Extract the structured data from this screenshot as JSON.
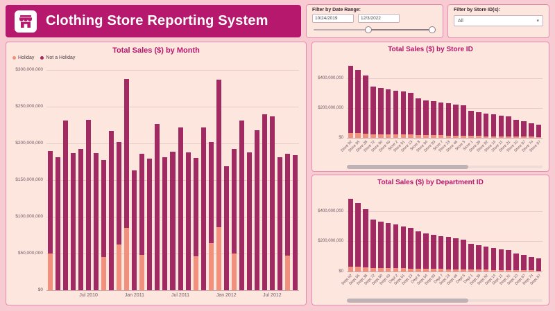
{
  "header": {
    "title": "Clothing Store Reporting System"
  },
  "filters": {
    "date": {
      "label": "Filter by Date Range:",
      "start": "10/24/2019",
      "end": "12/3/2022"
    },
    "store": {
      "label": "Filter by Store ID(s):",
      "value": "All"
    }
  },
  "colors": {
    "accent": "#b5186d",
    "bar_not_holiday": "#a12a63",
    "bar_holiday": "#f2907e",
    "panel_bg": "#fde6de",
    "panel_border": "#e78bb0",
    "page_bg": "#f8cbd3"
  },
  "chart_data": [
    {
      "id": "by_month",
      "type": "bar",
      "stacked": true,
      "title": "Total Sales ($) by Month",
      "unit": "million USD",
      "legend": [
        {
          "name": "Holiday",
          "color": "#f2907e"
        },
        {
          "name": "Not a Holiday",
          "color": "#a12a63"
        }
      ],
      "ylim": [
        0,
        300
      ],
      "yticks": [
        0,
        50,
        100,
        150,
        200,
        250,
        300
      ],
      "ytick_labels": [
        "$0",
        "$50,000,000",
        "$100,000,000",
        "$150,000,000",
        "$200,000,000",
        "$250,000,000",
        "$300,000,000"
      ],
      "categories": [
        "Feb 2010",
        "Mar 2010",
        "Apr 2010",
        "May 2010",
        "Jun 2010",
        "Jul 2010",
        "Aug 2010",
        "Sep 2010",
        "Oct 2010",
        "Nov 2010",
        "Dec 2010",
        "Jan 2011",
        "Feb 2011",
        "Mar 2011",
        "Apr 2011",
        "May 2011",
        "Jun 2011",
        "Jul 2011",
        "Aug 2011",
        "Sep 2011",
        "Oct 2011",
        "Nov 2011",
        "Dec 2011",
        "Jan 2012",
        "Feb 2012",
        "Mar 2012",
        "Apr 2012",
        "May 2012",
        "Jun 2012",
        "Jul 2012",
        "Aug 2012",
        "Sep 2012",
        "Oct 2012"
      ],
      "series": [
        {
          "name": "Holiday",
          "values": [
            50,
            0,
            0,
            0,
            0,
            0,
            0,
            45,
            0,
            62,
            85,
            0,
            48,
            0,
            0,
            0,
            0,
            0,
            0,
            46,
            0,
            64,
            86,
            0,
            50,
            0,
            0,
            0,
            0,
            0,
            0,
            47,
            0
          ]
        },
        {
          "name": "Not a Holiday",
          "values": [
            140,
            181,
            231,
            187,
            192,
            232,
            187,
            132,
            217,
            140,
            203,
            163,
            138,
            179,
            226,
            181,
            189,
            222,
            188,
            134,
            222,
            138,
            201,
            169,
            142,
            231,
            188,
            218,
            240,
            237,
            181,
            139,
            184
          ]
        }
      ],
      "x_tick_labels": [
        {
          "index": 5,
          "label": "Jul 2010"
        },
        {
          "index": 11,
          "label": "Jan 2011"
        },
        {
          "index": 17,
          "label": "Jul 2011"
        },
        {
          "index": 23,
          "label": "Jan 2012"
        },
        {
          "index": 29,
          "label": "Jul 2012"
        }
      ]
    },
    {
      "id": "by_store",
      "type": "bar",
      "stacked": true,
      "title": "Total Sales ($) by Store ID",
      "unit": "million USD",
      "legend": [
        {
          "name": "Holiday",
          "color": "#f2907e"
        },
        {
          "name": "Not a Holiday",
          "color": "#a12a63"
        }
      ],
      "ylim": [
        0,
        500
      ],
      "yticks": [
        0,
        200,
        400
      ],
      "ytick_labels": [
        "$0",
        "$200,000,000",
        "$400,000,000"
      ],
      "categories": [
        "Store 92",
        "Store 95",
        "Store 38",
        "Store 72",
        "Store 90",
        "Store 40",
        "Store 2",
        "Store 91",
        "Store 13",
        "Store 8",
        "Store 94",
        "Store 93",
        "Store 7",
        "Store 23",
        "Store 46",
        "Store 5",
        "Store 1",
        "Store 39",
        "Store 82",
        "Store 14",
        "Store 11",
        "Store 31",
        "Store 10",
        "Store 97",
        "Store 74",
        "Store 87"
      ],
      "series": [
        {
          "name": "Holiday",
          "values": [
            34,
            32,
            29,
            24,
            23,
            23,
            22,
            22,
            21,
            18,
            18,
            17,
            17,
            16,
            16,
            15,
            13,
            12,
            11,
            11,
            11,
            10,
            8,
            8,
            7,
            6
          ]
        },
        {
          "name": "Not a Holiday",
          "values": [
            449,
            420,
            389,
            318,
            310,
            302,
            295,
            287,
            279,
            244,
            234,
            227,
            220,
            214,
            207,
            201,
            167,
            160,
            153,
            146,
            139,
            133,
            112,
            102,
            91,
            84
          ]
        }
      ],
      "x_tick_labels": []
    },
    {
      "id": "by_department",
      "type": "bar",
      "stacked": true,
      "title": "Total Sales ($) by Department ID",
      "unit": "million USD",
      "legend": [
        {
          "name": "Holiday",
          "color": "#f2907e"
        },
        {
          "name": "Not a Holiday",
          "color": "#a12a63"
        }
      ],
      "ylim": [
        0,
        500
      ],
      "yticks": [
        0,
        200,
        400
      ],
      "ytick_labels": [
        "$0",
        "$200,000,000",
        "$400,000,000"
      ],
      "categories": [
        "Dept 92",
        "Dept 95",
        "Dept 38",
        "Dept 72",
        "Dept 90",
        "Dept 40",
        "Dept 2",
        "Dept 91",
        "Dept 13",
        "Dept 8",
        "Dept 94",
        "Dept 93",
        "Dept 7",
        "Dept 23",
        "Dept 46",
        "Dept 5",
        "Dept 1",
        "Dept 39",
        "Dept 82",
        "Dept 14",
        "Dept 11",
        "Dept 31",
        "Dept 10",
        "Dept 97",
        "Dept 74",
        "Dept 87"
      ],
      "series": [
        {
          "name": "Holiday",
          "values": [
            34,
            32,
            29,
            24,
            23,
            22,
            22,
            21,
            20,
            19,
            18,
            17,
            17,
            16,
            15,
            15,
            13,
            12,
            12,
            11,
            10,
            10,
            8,
            8,
            7,
            6
          ]
        },
        {
          "name": "Not a Holiday",
          "values": [
            446,
            423,
            386,
            321,
            307,
            298,
            288,
            279,
            268,
            247,
            236,
            228,
            219,
            212,
            205,
            197,
            172,
            163,
            153,
            145,
            138,
            130,
            110,
            100,
            89,
            82
          ]
        }
      ],
      "x_tick_labels": []
    }
  ]
}
